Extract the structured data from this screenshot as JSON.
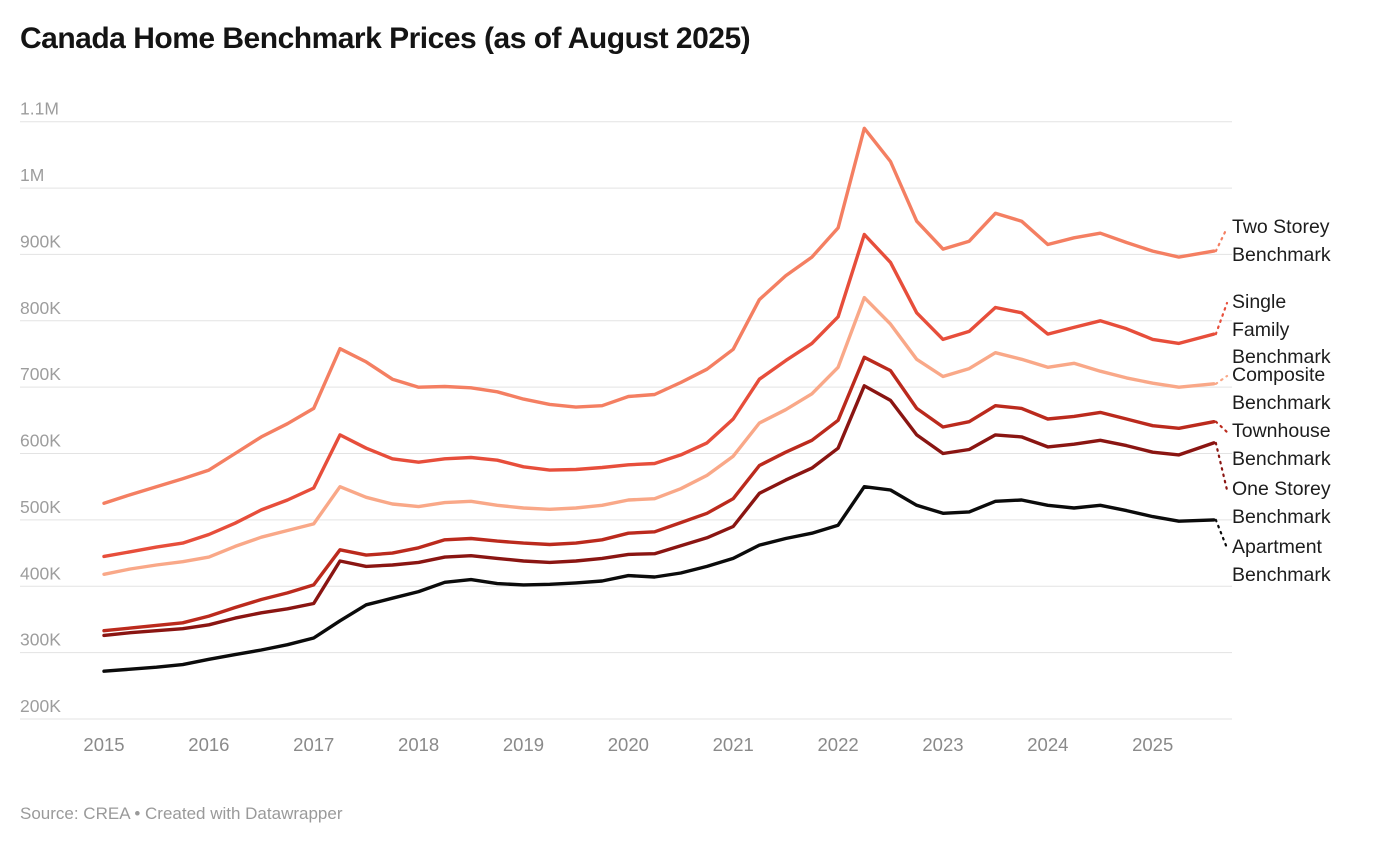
{
  "header": {
    "title": "Canada Home Benchmark Prices (as of August 2025)"
  },
  "footer": {
    "source": "Source: CREA • Created with Datawrapper"
  },
  "chart_data": {
    "type": "line",
    "title": "Canada Home Benchmark Prices (as of August 2025)",
    "values_unit": "thousands of CAD",
    "grid": "horizontal",
    "legend_position": "right-direct-labels",
    "xlim": [
      2015,
      2025.67
    ],
    "ylim_thousands": [
      200,
      1100
    ],
    "x_ticks": [
      "2015",
      "2016",
      "2017",
      "2018",
      "2019",
      "2020",
      "2021",
      "2022",
      "2023",
      "2024",
      "2025"
    ],
    "y_ticks": [
      {
        "value": 200,
        "label": "200K"
      },
      {
        "value": 300,
        "label": "300K"
      },
      {
        "value": 400,
        "label": "400K"
      },
      {
        "value": 500,
        "label": "500K"
      },
      {
        "value": 600,
        "label": "600K"
      },
      {
        "value": 700,
        "label": "700K"
      },
      {
        "value": 800,
        "label": "800K"
      },
      {
        "value": 900,
        "label": "900K"
      },
      {
        "value": 1000,
        "label": "1M"
      },
      {
        "value": 1100,
        "label": "1.1M"
      }
    ],
    "x": [
      2015,
      2015.25,
      2015.5,
      2015.75,
      2016,
      2016.25,
      2016.5,
      2016.75,
      2017,
      2017.25,
      2017.5,
      2017.75,
      2018,
      2018.25,
      2018.5,
      2018.75,
      2019,
      2019.25,
      2019.5,
      2019.75,
      2020,
      2020.25,
      2020.5,
      2020.75,
      2021,
      2021.25,
      2021.5,
      2021.75,
      2022,
      2022.25,
      2022.5,
      2022.75,
      2023,
      2023.25,
      2023.5,
      2023.75,
      2024,
      2024.25,
      2024.5,
      2024.75,
      2025,
      2025.25,
      2025.583
    ],
    "series": [
      {
        "id": "two-storey",
        "name": "Two Storey Benchmark",
        "label_lines": [
          "Two Storey",
          "Benchmark"
        ],
        "color": "#f47f62",
        "values": [
          525,
          538,
          550,
          562,
          575,
          600,
          625,
          645,
          668,
          758,
          738,
          712,
          700,
          701,
          699,
          693,
          682,
          674,
          670,
          672,
          686,
          689,
          707,
          727,
          757,
          832,
          868,
          896,
          940,
          1090,
          1040,
          950,
          908,
          920,
          962,
          950,
          915,
          925,
          932,
          918,
          905,
          896,
          905
        ]
      },
      {
        "id": "single-family",
        "name": "Single Family Benchmark",
        "label_lines": [
          "Single",
          "Family",
          "Benchmark"
        ],
        "color": "#e74e3b",
        "values": [
          445,
          452,
          459,
          465,
          478,
          495,
          515,
          530,
          548,
          628,
          608,
          592,
          587,
          592,
          594,
          590,
          580,
          575,
          576,
          579,
          583,
          585,
          598,
          616,
          652,
          712,
          740,
          766,
          806,
          930,
          888,
          812,
          772,
          784,
          820,
          812,
          780,
          790,
          800,
          788,
          772,
          766,
          780
        ]
      },
      {
        "id": "composite",
        "name": "Composite Benchmark",
        "label_lines": [
          "Composite",
          "Benchmark"
        ],
        "color": "#f9a888",
        "values": [
          418,
          426,
          432,
          437,
          444,
          460,
          474,
          484,
          494,
          550,
          534,
          524,
          520,
          526,
          528,
          522,
          518,
          516,
          518,
          522,
          530,
          532,
          547,
          567,
          596,
          646,
          666,
          690,
          730,
          835,
          795,
          742,
          716,
          728,
          752,
          742,
          730,
          736,
          724,
          714,
          706,
          700,
          705
        ]
      },
      {
        "id": "townhouse",
        "name": "Townhouse Benchmark",
        "label_lines": [
          "Townhouse",
          "Benchmark"
        ],
        "color": "#bb2a1d",
        "values": [
          333,
          337,
          341,
          345,
          355,
          368,
          380,
          390,
          402,
          455,
          447,
          450,
          458,
          470,
          472,
          468,
          465,
          463,
          465,
          470,
          480,
          482,
          496,
          510,
          532,
          582,
          602,
          620,
          650,
          745,
          725,
          668,
          640,
          648,
          672,
          668,
          652,
          656,
          662,
          652,
          642,
          638,
          648
        ]
      },
      {
        "id": "one-storey",
        "name": "One Storey Benchmark",
        "label_lines": [
          "One Storey",
          "Benchmark"
        ],
        "color": "#8a1512",
        "values": [
          326,
          330,
          333,
          336,
          342,
          352,
          360,
          366,
          374,
          438,
          430,
          432,
          436,
          444,
          446,
          442,
          438,
          436,
          438,
          442,
          448,
          449,
          461,
          473,
          490,
          540,
          560,
          578,
          608,
          702,
          680,
          628,
          600,
          606,
          628,
          625,
          610,
          614,
          620,
          612,
          602,
          598,
          616
        ]
      },
      {
        "id": "apartment",
        "name": "Apartment Benchmark",
        "label_lines": [
          "Apartment",
          "Benchmark"
        ],
        "color": "#0b0b0b",
        "values": [
          272,
          275,
          278,
          282,
          290,
          297,
          304,
          312,
          322,
          348,
          372,
          382,
          392,
          406,
          410,
          404,
          402,
          403,
          405,
          408,
          416,
          414,
          420,
          430,
          442,
          462,
          472,
          480,
          492,
          550,
          545,
          522,
          510,
          512,
          528,
          530,
          522,
          518,
          522,
          514,
          505,
          498,
          500
        ]
      }
    ]
  }
}
